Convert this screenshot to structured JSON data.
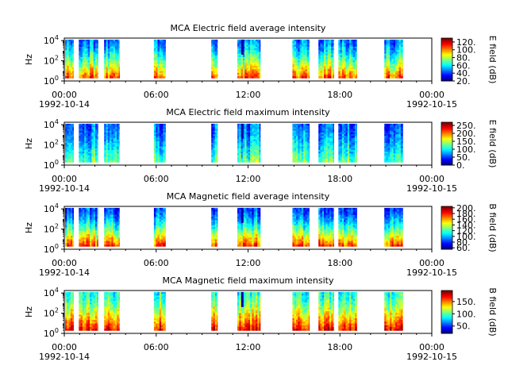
{
  "figure": {
    "width": 640,
    "height": 480
  },
  "colormap": [
    "#00007f",
    "#0000ff",
    "#007fff",
    "#00ffff",
    "#7fff7f",
    "#ffff00",
    "#ff7f00",
    "#ff0000",
    "#7f0000"
  ],
  "chart_data": [
    {
      "type": "heatmap",
      "title": "MCA  Electric field average intensity",
      "ylabel": "Hz",
      "y_scale": "log",
      "y_ticks": [
        {
          "exp": "0"
        },
        {
          "exp": "2"
        },
        {
          "exp": "4"
        }
      ],
      "x_ticks": [
        "00:00",
        "06:00",
        "12:00",
        "18:00",
        "00:00"
      ],
      "x_dates": [
        "1992-10-14",
        "1992-10-15"
      ],
      "colorbar": {
        "label": "E field (dB)",
        "ticks": [
          "20.",
          "40.",
          "60.",
          "80.",
          "100.",
          "120."
        ],
        "range": [
          20,
          130
        ]
      },
      "level_range": [
        0.25,
        0.8
      ],
      "data_intervals": [
        [
          0.0,
          0.09
        ],
        [
          0.11,
          0.3
        ],
        [
          0.34,
          0.55
        ],
        [
          0.25,
          0.4
        ],
        [
          0.18,
          0.32
        ],
        [
          0.28,
          0.44
        ],
        [
          0.3,
          0.52
        ],
        [
          0.2,
          0.38
        ],
        [
          0.1,
          0.28
        ],
        [
          0.26,
          0.48
        ]
      ],
      "time_range_hours": [
        0,
        24
      ]
    },
    {
      "type": "heatmap",
      "title": "MCA  Electric field maximum intensity",
      "ylabel": "Hz",
      "y_scale": "log",
      "y_ticks": [
        {
          "exp": "0"
        },
        {
          "exp": "2"
        },
        {
          "exp": "4"
        }
      ],
      "x_ticks": [
        "00:00",
        "06:00",
        "12:00",
        "18:00",
        "00:00"
      ],
      "x_dates": [
        "1992-10-14",
        "1992-10-15"
      ],
      "colorbar": {
        "label": "E field (dB)",
        "ticks": [
          "0.",
          "50.",
          "100.",
          "150.",
          "200.",
          "250."
        ],
        "range": [
          0,
          270
        ]
      },
      "level_range": [
        0.22,
        0.48
      ],
      "time_range_hours": [
        0,
        24
      ]
    },
    {
      "type": "heatmap",
      "title": "MCA  Magnetic field average intensity",
      "ylabel": "Hz",
      "y_scale": "log",
      "y_ticks": [
        {
          "exp": "0"
        },
        {
          "exp": "2"
        },
        {
          "exp": "4"
        }
      ],
      "x_ticks": [
        "00:00",
        "06:00",
        "12:00",
        "18:00",
        "00:00"
      ],
      "x_dates": [
        "1992-10-14",
        "1992-10-15"
      ],
      "colorbar": {
        "label": "B field (dB)",
        "ticks": [
          "60.",
          "80.",
          "100.",
          "120.",
          "140.",
          "160.",
          "180.",
          "200."
        ],
        "range": [
          55,
          205
        ]
      },
      "level_range": [
        0.18,
        0.82
      ],
      "time_range_hours": [
        0,
        24
      ]
    },
    {
      "type": "heatmap",
      "title": "MCA  Magnetic field maximum intensity",
      "ylabel": "Hz",
      "y_scale": "log",
      "y_ticks": [
        {
          "exp": "0"
        },
        {
          "exp": "2"
        },
        {
          "exp": "4"
        }
      ],
      "x_ticks": [
        "00:00",
        "06:00",
        "12:00",
        "18:00",
        "00:00"
      ],
      "x_dates": [
        "1992-10-14",
        "1992-10-15"
      ],
      "colorbar": {
        "label": "B field (dB)",
        "ticks": [
          "50.",
          "100.",
          "150."
        ],
        "range": [
          20,
          195
        ]
      },
      "level_range": [
        0.4,
        0.88
      ],
      "time_range_hours": [
        0,
        24
      ]
    }
  ],
  "data_intervals_hours": [
    [
      0.05,
      0.6
    ],
    [
      0.95,
      2.2
    ],
    [
      2.6,
      3.6
    ],
    [
      5.85,
      6.6
    ],
    [
      9.6,
      10.0
    ],
    [
      11.3,
      12.8
    ],
    [
      14.9,
      16.0
    ],
    [
      16.6,
      17.6
    ],
    [
      17.9,
      19.1
    ],
    [
      20.9,
      22.1
    ]
  ]
}
